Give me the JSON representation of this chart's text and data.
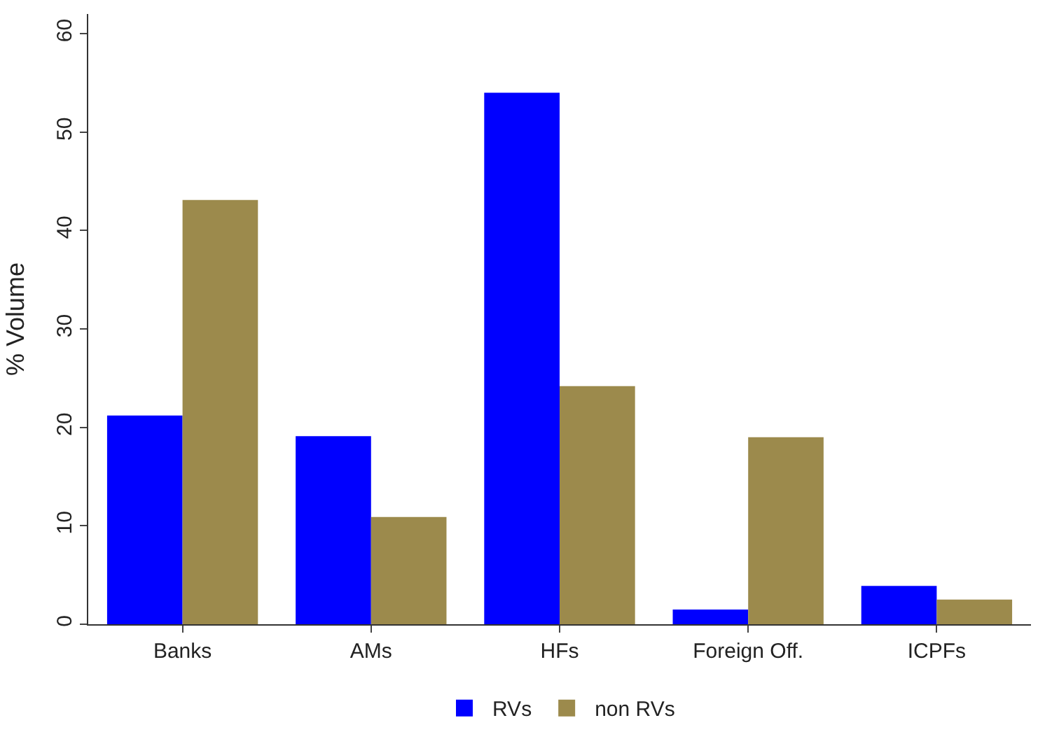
{
  "chart_data": {
    "type": "bar",
    "ylabel": "% Volume",
    "categories": [
      "Banks",
      "AMs",
      "HFs",
      "Foreign Off.",
      "ICPFs"
    ],
    "series": [
      {
        "name": "RVs",
        "color": "#0000ff",
        "values": [
          21.2,
          19.1,
          54.0,
          1.5,
          3.9
        ]
      },
      {
        "name": "non RVs",
        "color": "#9c8a4c",
        "values": [
          43.1,
          10.9,
          24.2,
          19.0,
          2.5
        ]
      }
    ],
    "ylim": [
      0,
      62
    ],
    "yticks": [
      0,
      10,
      20,
      30,
      40,
      50,
      60
    ],
    "legend": "bottom"
  }
}
